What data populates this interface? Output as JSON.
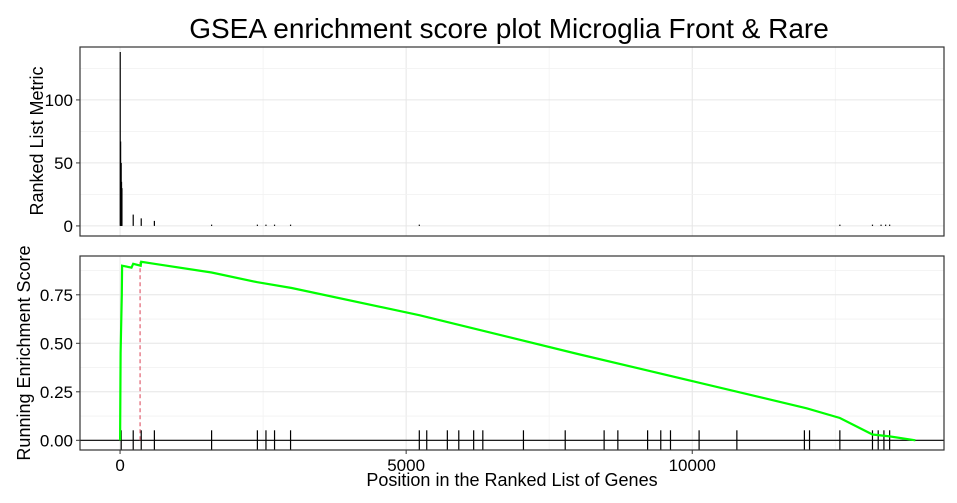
{
  "chart_data": [
    {
      "type": "bar",
      "panel": "ranked-list-metric",
      "title": "GSEA enrichment score plot Microglia Front & Rare",
      "ylabel": "Ranked List Metric",
      "xlim": [
        -700,
        14400
      ],
      "ylim": [
        -8,
        142
      ],
      "yticks": [
        0,
        50,
        100
      ],
      "grid": true,
      "bar_color": "#000000",
      "x": [
        3,
        10,
        20,
        26,
        33,
        230,
        370,
        600,
        1600,
        2400,
        2550,
        2700,
        2980,
        5230,
        12580,
        13150,
        13300,
        13380,
        13450
      ],
      "values": [
        138,
        67,
        50,
        35,
        30,
        9,
        6,
        4,
        1,
        1,
        1,
        1,
        1,
        1,
        1,
        1,
        1,
        1,
        1
      ]
    },
    {
      "type": "line",
      "panel": "running-enrichment-score",
      "ylabel": "Running Enrichment Score",
      "xlabel": "Position in the Ranked List of Genes",
      "xlim": [
        -700,
        14400
      ],
      "ylim": [
        -0.05,
        0.95
      ],
      "xticks": [
        0,
        5000,
        10000
      ],
      "yticks": [
        0.0,
        0.25,
        0.5,
        0.75
      ],
      "ytick_labels": [
        "0.00",
        "0.25",
        "0.50",
        "0.75"
      ],
      "grid": true,
      "line_color": "#00ff00",
      "peak_line_color": "#e06070",
      "peak_x": 350,
      "x": [
        0,
        10,
        20,
        30,
        35,
        200,
        230,
        360,
        370,
        600,
        1600,
        2400,
        3000,
        5230,
        8000,
        10000,
        12000,
        12580,
        13150,
        13450,
        13900
      ],
      "values": [
        0.0,
        0.45,
        0.6,
        0.75,
        0.9,
        0.89,
        0.91,
        0.9,
        0.92,
        0.91,
        0.865,
        0.815,
        0.785,
        0.645,
        0.445,
        0.305,
        0.165,
        0.115,
        0.03,
        0.02,
        0.0
      ],
      "hits": [
        20,
        230,
        370,
        600,
        1600,
        2400,
        2550,
        2700,
        2980,
        5230,
        5360,
        5720,
        5920,
        6180,
        6340,
        7050,
        7780,
        8460,
        8700,
        9220,
        9450,
        9620,
        10120,
        10780,
        11960,
        12050,
        12580,
        13150,
        13250,
        13350,
        13450
      ]
    }
  ]
}
